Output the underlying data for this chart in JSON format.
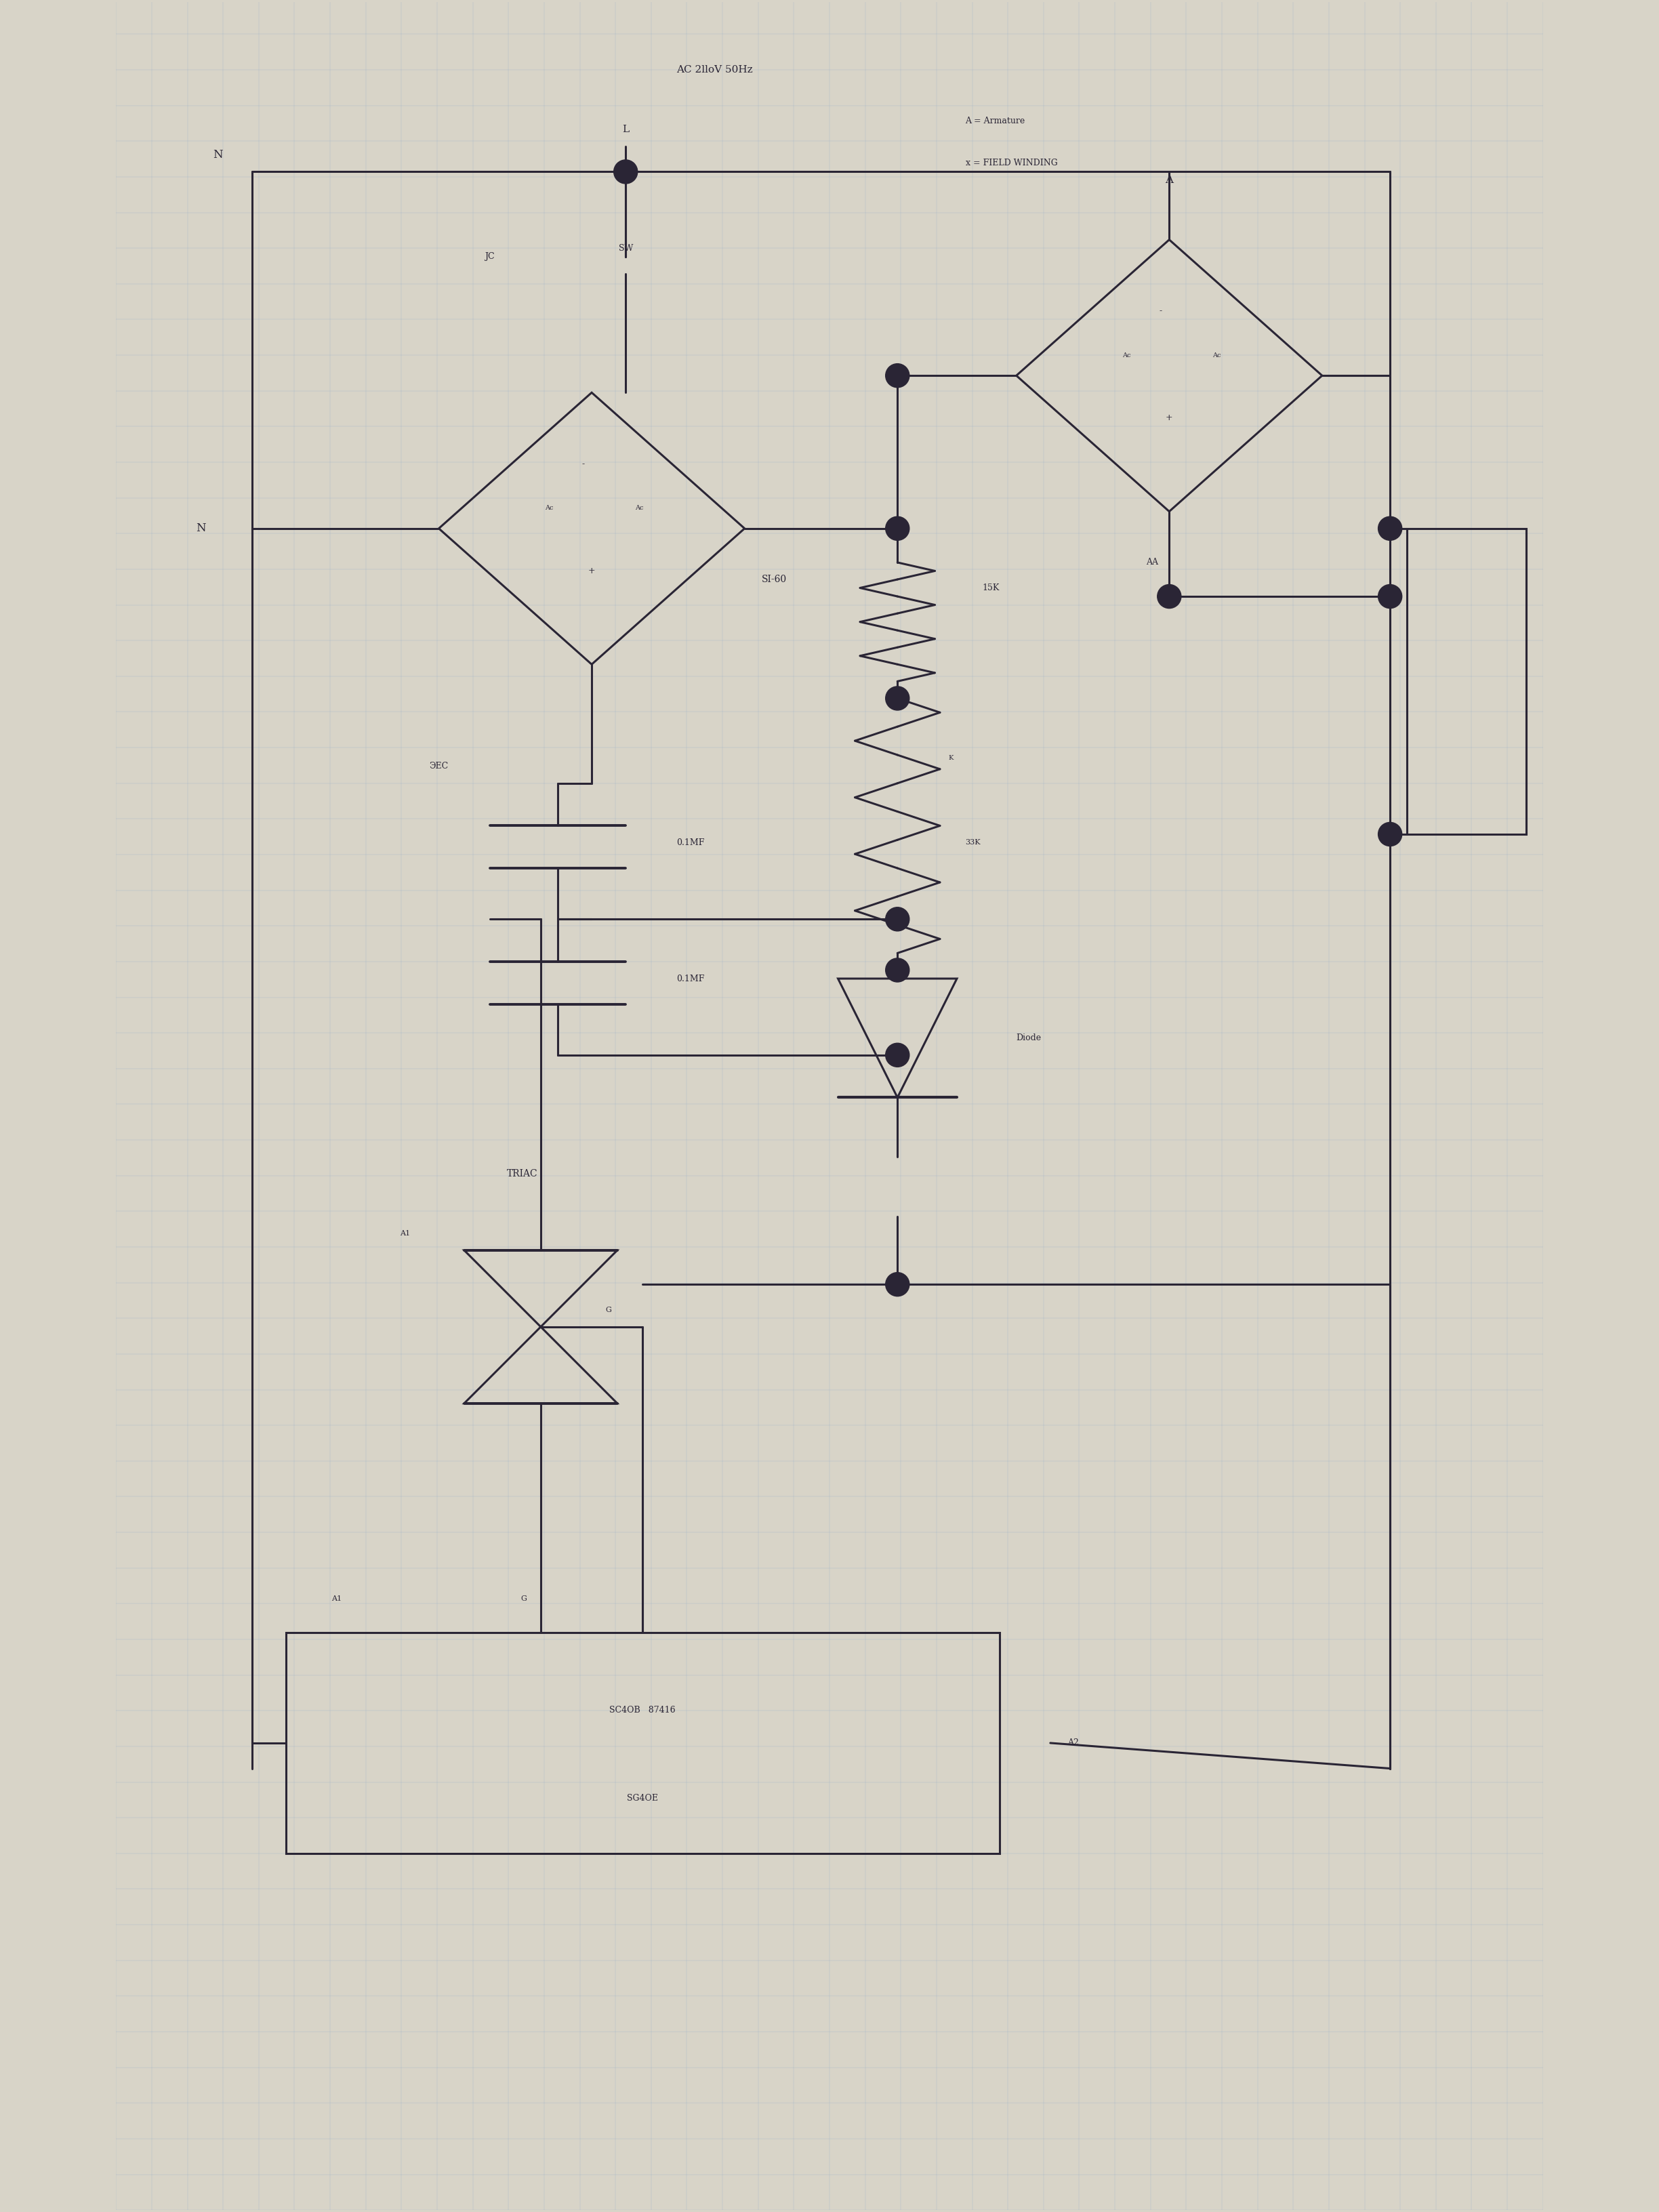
{
  "bg_color": "#d8d4c8",
  "paper_color": "#e8e4d8",
  "line_color": "#2a2535",
  "grid_color": "#9ab0c8",
  "title": "AC 2lloV 50Hz",
  "legend_A": "A = Armature",
  "legend_F": "x = FIELD WINDING",
  "fig_w": 24.48,
  "fig_h": 32.64
}
